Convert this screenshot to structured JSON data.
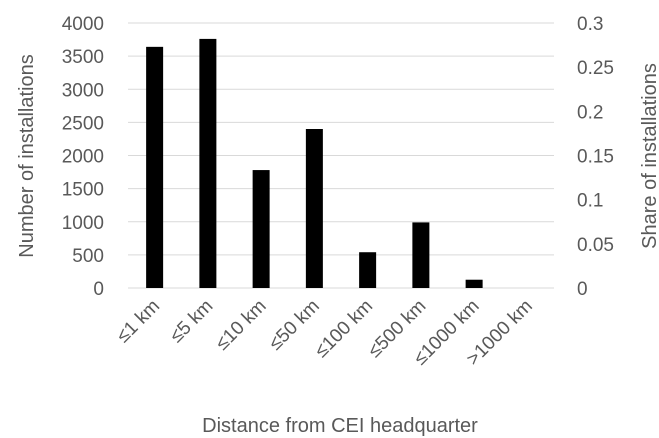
{
  "chart_data": {
    "type": "bar",
    "categories": [
      "≤1 km",
      "≤5 km",
      "≤10 km",
      "≤50 km",
      "≤100 km",
      "≤500 km",
      "≤1000 km",
      ">1000 km"
    ],
    "values": [
      3640,
      3760,
      1780,
      2400,
      540,
      990,
      125,
      0
    ],
    "xlabel": "Distance from CEI headquarter",
    "ylabel": "Number of installations",
    "y2label": "Share of installations",
    "ylim": [
      0,
      4000
    ],
    "y2lim": [
      0,
      0.3
    ],
    "yticks": [
      "0",
      "500",
      "1000",
      "1500",
      "2000",
      "2500",
      "3000",
      "3500",
      "4000"
    ],
    "y2ticks": [
      "0",
      "0.05",
      "0.1",
      "0.15",
      "0.2",
      "0.25",
      "0.3"
    ],
    "grid": true,
    "bar_color": "#000000"
  }
}
